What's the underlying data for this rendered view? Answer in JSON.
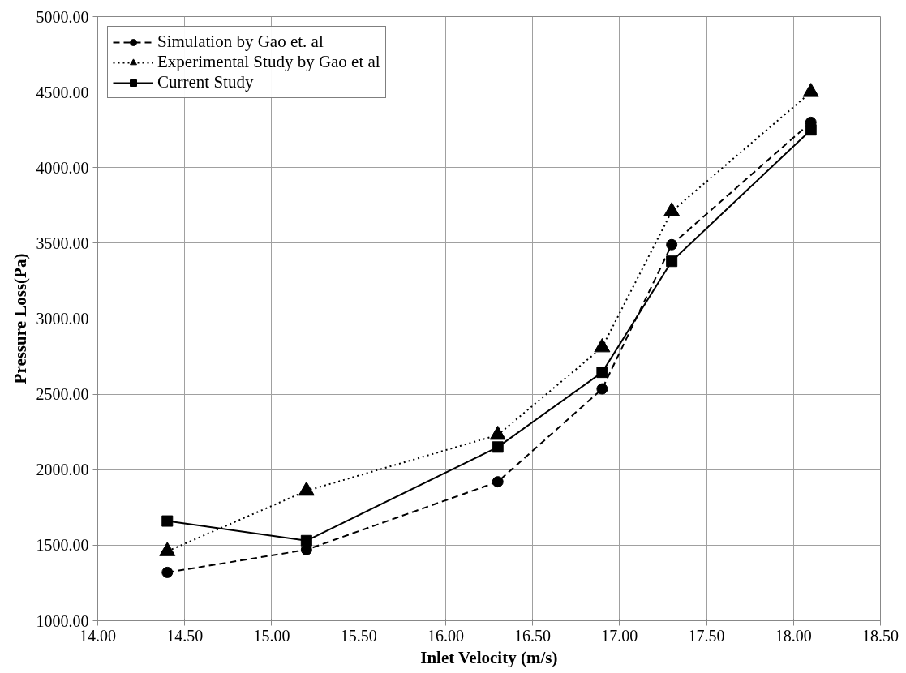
{
  "chart_data": {
    "type": "line",
    "xlabel": "Inlet Velocity (m/s)",
    "ylabel": "Pressure Loss(Pa)",
    "x": [
      14.4,
      15.2,
      16.3,
      16.9,
      17.3,
      18.1
    ],
    "series": [
      {
        "name": "Simulation by Gao et. al",
        "color": "#000000",
        "marker": "circle",
        "line_style": "dashed",
        "values": [
          1320,
          1470,
          1920,
          2535,
          3490,
          4300
        ]
      },
      {
        "name": "Experimental Study by Gao et al",
        "color": "#000000",
        "marker": "triangle",
        "line_style": "dotted",
        "values": [
          1460,
          1860,
          2230,
          2810,
          3710,
          4500
        ]
      },
      {
        "name": "Current Study",
        "color": "#000000",
        "marker": "square",
        "line_style": "solid",
        "values": [
          1660,
          1530,
          2150,
          2645,
          3380,
          4250
        ]
      }
    ],
    "xlim": [
      14,
      18.5
    ],
    "xticks": [
      {
        "value": 14,
        "label": "14.00"
      },
      {
        "value": 14.5,
        "label": "14.50"
      },
      {
        "value": 15,
        "label": "15.00"
      },
      {
        "value": 15.5,
        "label": "15.50"
      },
      {
        "value": 16,
        "label": "16.00"
      },
      {
        "value": 16.5,
        "label": "16.50"
      },
      {
        "value": 17,
        "label": "17.00"
      },
      {
        "value": 17.5,
        "label": "17.50"
      },
      {
        "value": 18,
        "label": "18.00"
      },
      {
        "value": 18.5,
        "label": "18.50"
      }
    ],
    "ylim": [
      1000,
      5000
    ],
    "yticks": [
      {
        "value": 1000,
        "label": "1000.00"
      },
      {
        "value": 1500,
        "label": "1500.00"
      },
      {
        "value": 2000,
        "label": "2000.00"
      },
      {
        "value": 2500,
        "label": "2500.00"
      },
      {
        "value": 3000,
        "label": "3000.00"
      },
      {
        "value": 3500,
        "label": "3500.00"
      },
      {
        "value": 4000,
        "label": "4000.00"
      },
      {
        "value": 4500,
        "label": "4500.00"
      },
      {
        "value": 5000,
        "label": "5000.00"
      }
    ],
    "grid": true,
    "legend": "top left"
  }
}
